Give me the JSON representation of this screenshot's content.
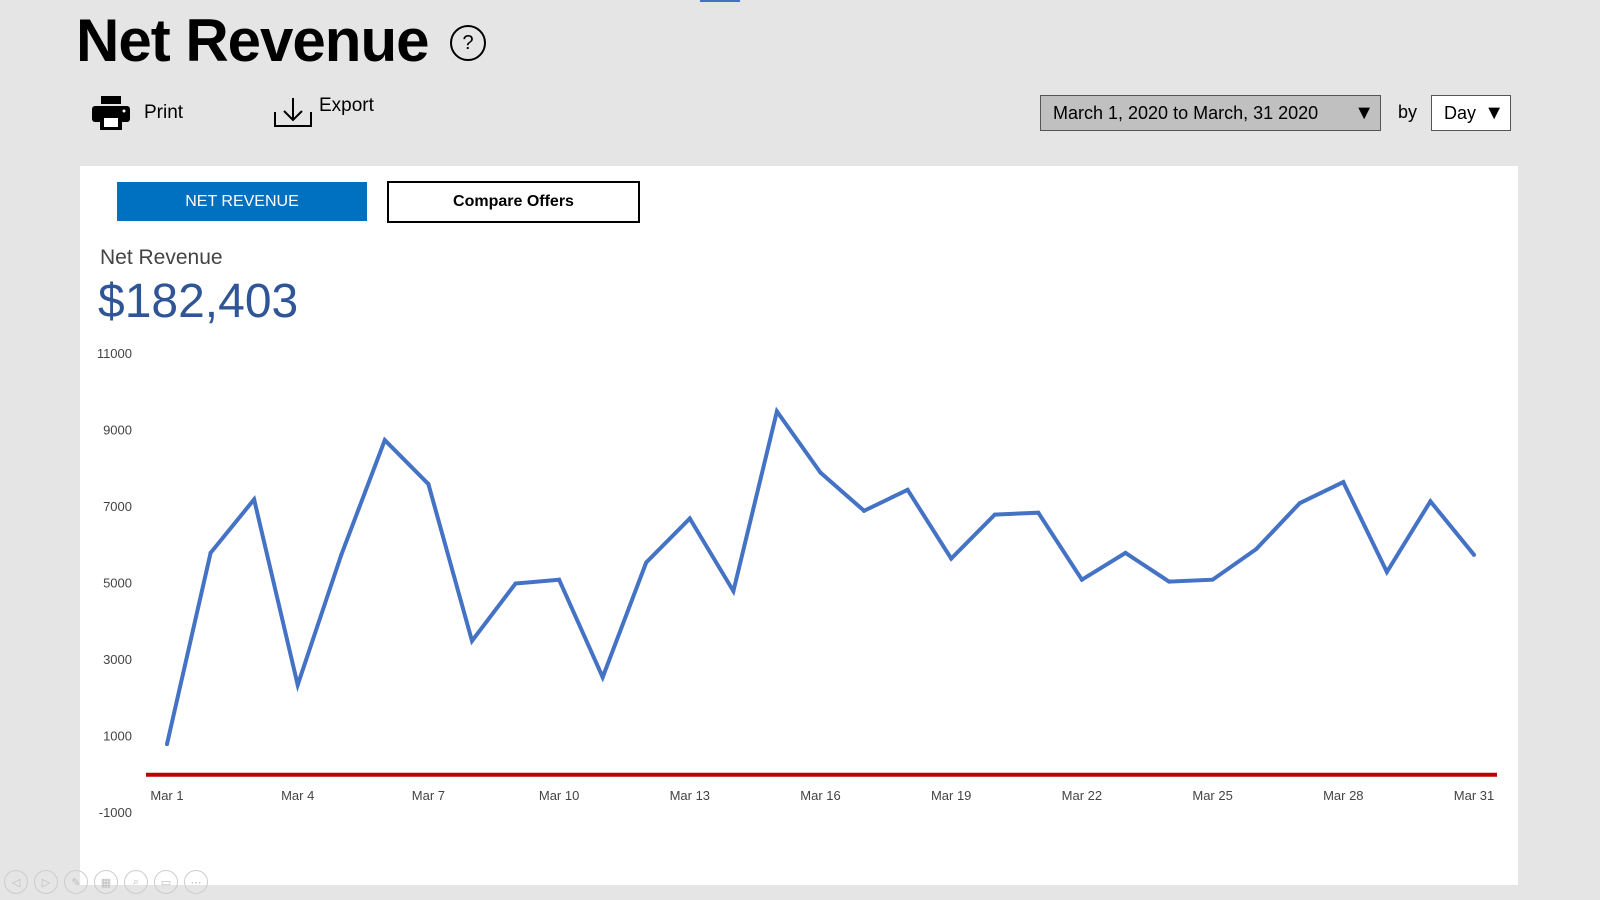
{
  "header": {
    "title": "Net Revenue",
    "help_icon": "?",
    "print_label": "Print",
    "export_label": "Export",
    "date_range": "March 1, 2020 to March, 31 2020",
    "by_label": "by",
    "granularity": "Day"
  },
  "tabs": [
    {
      "label": "NET REVENUE",
      "active": true
    },
    {
      "label": "Compare Offers",
      "active": false
    }
  ],
  "summary": {
    "label": "Net Revenue",
    "value": "$182,403"
  },
  "colors": {
    "accent": "#0070c0",
    "value_text": "#2f5597",
    "line": "#4472c4",
    "zero_line": "#c00000"
  },
  "chart_data": {
    "type": "line",
    "ylim": [
      -1000,
      11000
    ],
    "yticks": [
      "11000",
      "9000",
      "7000",
      "5000",
      "3000",
      "1000",
      "-1000"
    ],
    "ytick_values": [
      11000,
      9000,
      7000,
      5000,
      3000,
      1000,
      -1000
    ],
    "xtick_labels": [
      "Mar 1",
      "Mar 4",
      "Mar 7",
      "Mar 10",
      "Mar 13",
      "Mar 16",
      "Mar 19",
      "Mar 22",
      "Mar 25",
      "Mar 28",
      "Mar 31"
    ],
    "xtick_days": [
      1,
      4,
      7,
      10,
      13,
      16,
      19,
      22,
      25,
      28,
      31
    ],
    "reference_line": 0,
    "grid": false,
    "x": [
      1,
      2,
      3,
      4,
      5,
      6,
      7,
      8,
      9,
      10,
      11,
      12,
      13,
      14,
      15,
      16,
      17,
      18,
      19,
      20,
      21,
      22,
      23,
      24,
      25,
      26,
      27,
      28,
      29,
      30,
      31
    ],
    "values": [
      800,
      5800,
      7200,
      2350,
      5750,
      8750,
      7600,
      3500,
      5000,
      5100,
      2550,
      5550,
      6700,
      4800,
      9500,
      7900,
      6900,
      7450,
      5650,
      6800,
      6850,
      5100,
      5800,
      5050,
      5100,
      5900,
      7100,
      7650,
      5300,
      7150,
      5750
    ]
  },
  "bottom_toolbar": [
    "previous-icon",
    "next-icon",
    "pen-icon",
    "slides-icon",
    "zoom-icon",
    "view-icon",
    "more-icon"
  ]
}
